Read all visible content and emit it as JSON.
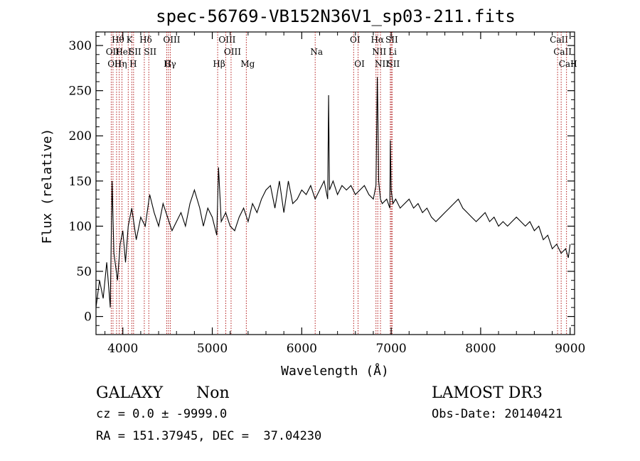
{
  "chart_data": {
    "type": "line",
    "title": "spec-56769-VB152N36V1_sp03-211.fits",
    "xlabel": "Wavelength (Å)",
    "ylabel": "Flux (relative)",
    "xlim": [
      3700,
      9050
    ],
    "ylim": [
      -20,
      315
    ],
    "xticks": [
      4000,
      5000,
      6000,
      7000,
      8000,
      9000
    ],
    "yticks": [
      0,
      50,
      100,
      150,
      200,
      250,
      300
    ],
    "line_color": "#000000",
    "marker_color": "#aa0000",
    "series": [
      {
        "x": [
          3700,
          3740,
          3780,
          3820,
          3860,
          3880,
          3900,
          3940,
          3970,
          4000,
          4030,
          4060,
          4100,
          4150,
          4200,
          4250,
          4300,
          4350,
          4400,
          4450,
          4500,
          4550,
          4600,
          4650,
          4700,
          4750,
          4800,
          4860,
          4900,
          4950,
          5000,
          5050,
          5070,
          5100,
          5150,
          5200,
          5250,
          5300,
          5350,
          5400,
          5450,
          5500,
          5550,
          5600,
          5650,
          5700,
          5750,
          5800,
          5850,
          5900,
          5950,
          6000,
          6050,
          6100,
          6150,
          6200,
          6250,
          6290,
          6300,
          6310,
          6350,
          6400,
          6450,
          6500,
          6550,
          6600,
          6650,
          6700,
          6750,
          6800,
          6830,
          6845,
          6850,
          6860,
          6880,
          6900,
          6950,
          6985,
          6990,
          7000,
          7020,
          7050,
          7100,
          7150,
          7200,
          7250,
          7300,
          7350,
          7400,
          7450,
          7500,
          7550,
          7600,
          7650,
          7700,
          7750,
          7800,
          7850,
          7900,
          7950,
          8000,
          8050,
          8100,
          8150,
          8200,
          8250,
          8300,
          8350,
          8400,
          8450,
          8500,
          8550,
          8600,
          8650,
          8700,
          8750,
          8800,
          8850,
          8900,
          8950,
          8980,
          9000
        ],
        "y": [
          10,
          40,
          20,
          60,
          10,
          150,
          70,
          40,
          80,
          95,
          60,
          100,
          120,
          85,
          110,
          100,
          135,
          115,
          100,
          125,
          110,
          95,
          105,
          115,
          100,
          125,
          140,
          120,
          100,
          120,
          110,
          90,
          165,
          105,
          115,
          100,
          95,
          110,
          120,
          105,
          125,
          115,
          130,
          140,
          145,
          120,
          150,
          115,
          150,
          125,
          130,
          140,
          135,
          145,
          130,
          140,
          150,
          130,
          245,
          140,
          150,
          135,
          145,
          140,
          145,
          135,
          140,
          145,
          135,
          130,
          145,
          265,
          230,
          150,
          130,
          125,
          130,
          120,
          195,
          140,
          125,
          130,
          120,
          125,
          130,
          120,
          125,
          115,
          120,
          110,
          105,
          110,
          115,
          120,
          125,
          130,
          120,
          115,
          110,
          105,
          110,
          115,
          105,
          110,
          100,
          105,
          100,
          105,
          110,
          105,
          100,
          105,
          95,
          100,
          85,
          90,
          75,
          80,
          70,
          75,
          65,
          80
        ]
      }
    ],
    "line_markers": [
      {
        "w": 3870,
        "row": 1,
        "label": "OII"
      },
      {
        "w": 3890,
        "row": 2,
        "label": "OII"
      },
      {
        "w": 3930,
        "row": 0,
        "label": "Hθ"
      },
      {
        "w": 3960,
        "row": 2,
        "label": "Hη"
      },
      {
        "w": 3990,
        "row": 1,
        "label": "HeI"
      },
      {
        "w": 4060,
        "row": 0,
        "label": "K"
      },
      {
        "w": 4100,
        "row": 2,
        "label": "H"
      },
      {
        "w": 4120,
        "row": 1,
        "label": "SII"
      },
      {
        "w": 4240,
        "row": 0,
        "label": "Hδ"
      },
      {
        "w": 4290,
        "row": 1,
        "label": "SII"
      },
      {
        "w": 4490,
        "row": 3,
        "label": "G"
      },
      {
        "w": 4510,
        "row": 2,
        "label": "Hγ"
      },
      {
        "w": 4530,
        "row": 0,
        "label": "OIII"
      },
      {
        "w": 5060,
        "row": 3,
        "label": "Hβ"
      },
      {
        "w": 5150,
        "row": 0,
        "label": "OIII"
      },
      {
        "w": 5210,
        "row": 1,
        "label": "OIII"
      },
      {
        "w": 5380,
        "row": 3,
        "label": "Mg"
      },
      {
        "w": 6150,
        "row": 1,
        "label": "Na"
      },
      {
        "w": 6580,
        "row": 0,
        "label": "OI"
      },
      {
        "w": 6630,
        "row": 2,
        "label": "OI"
      },
      {
        "w": 6830,
        "row": 0,
        "label": "Hα"
      },
      {
        "w": 6850,
        "row": 1,
        "label": "NII"
      },
      {
        "w": 6880,
        "row": 2,
        "label": "NII"
      },
      {
        "w": 6990,
        "row": 0,
        "label": "SII"
      },
      {
        "w": 7000,
        "row": 1,
        "label": "Li"
      },
      {
        "w": 7010,
        "row": 2,
        "label": "SII"
      },
      {
        "w": 8860,
        "row": 0,
        "label": "CaII"
      },
      {
        "w": 8900,
        "row": 1,
        "label": "CaII"
      },
      {
        "w": 8960,
        "row": 2,
        "label": "CaII"
      }
    ]
  },
  "info": {
    "class_label": "GALAXY",
    "subclass_label": "Non",
    "survey": "LAMOST DR3",
    "cz_line": "cz = 0.0 ± -9999.0",
    "obs_date": "Obs-Date: 20140421",
    "coords": "RA = 151.37945, DEC =  37.04230"
  }
}
